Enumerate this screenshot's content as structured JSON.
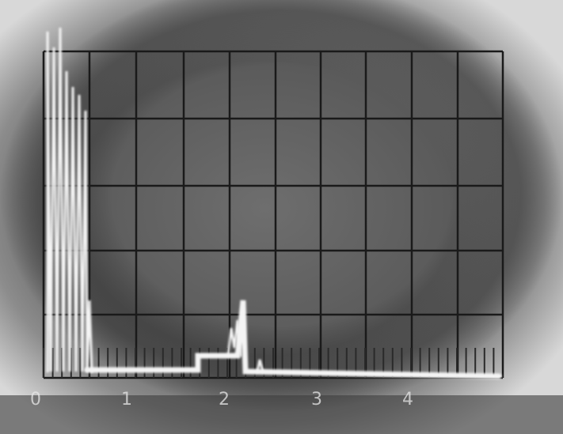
{
  "scale_labels": [
    "0",
    "1",
    "2",
    "3",
    "4"
  ]
}
